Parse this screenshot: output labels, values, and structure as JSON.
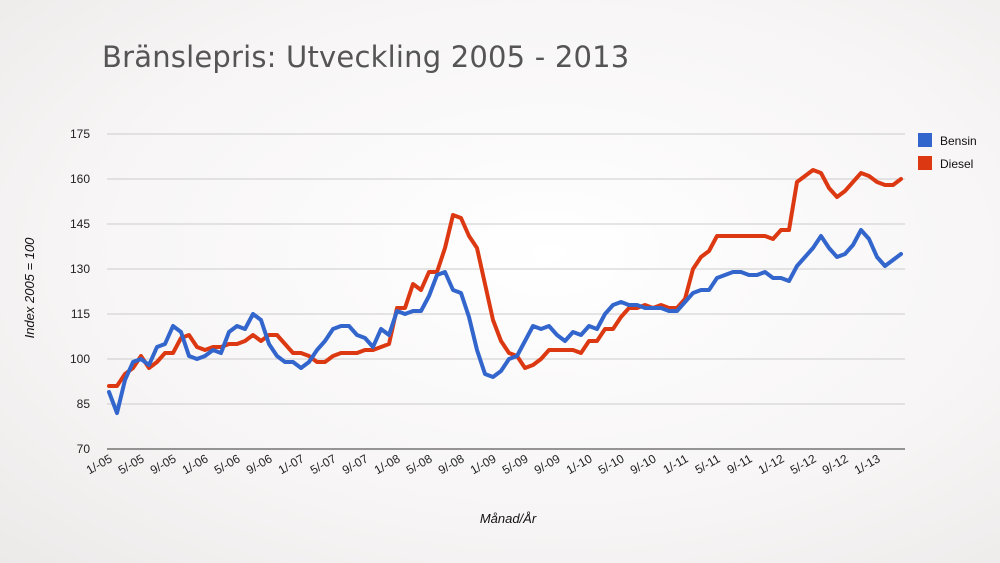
{
  "chart_data": {
    "type": "line",
    "title": "Bränslepris: Utveckling 2005 - 2013",
    "xlabel": "Månad/År",
    "ylabel": "Index 2005 = 100",
    "ylim": [
      70,
      175
    ],
    "yticks": [
      70,
      85,
      100,
      115,
      130,
      145,
      160,
      175
    ],
    "xticks": [
      {
        "label": "1/-05",
        "index": 0
      },
      {
        "label": "5/-05",
        "index": 4
      },
      {
        "label": "9/-05",
        "index": 8
      },
      {
        "label": "1/-06",
        "index": 12
      },
      {
        "label": "5/-06",
        "index": 16
      },
      {
        "label": "9/-06",
        "index": 20
      },
      {
        "label": "1/-07",
        "index": 24
      },
      {
        "label": "5/-07",
        "index": 28
      },
      {
        "label": "9/-07",
        "index": 32
      },
      {
        "label": "1/-08",
        "index": 36
      },
      {
        "label": "5/-08",
        "index": 40
      },
      {
        "label": "9/-08",
        "index": 44
      },
      {
        "label": "1/-09",
        "index": 48
      },
      {
        "label": "5/-09",
        "index": 52
      },
      {
        "label": "9/-09",
        "index": 56
      },
      {
        "label": "1/-10",
        "index": 60
      },
      {
        "label": "5/-10",
        "index": 64
      },
      {
        "label": "9/-10",
        "index": 68
      },
      {
        "label": "1/-11",
        "index": 72
      },
      {
        "label": "5/-11",
        "index": 76
      },
      {
        "label": "9/-11",
        "index": 80
      },
      {
        "label": "1/-12",
        "index": 84
      },
      {
        "label": "5/-12",
        "index": 88
      },
      {
        "label": "9/-12",
        "index": 92
      },
      {
        "label": "1/-13",
        "index": 96
      }
    ],
    "grid": true,
    "legend_position": "right",
    "series": [
      {
        "name": "Bensin",
        "color": "#3366cc",
        "values": [
          89,
          82,
          93,
          99,
          100,
          98,
          104,
          105,
          111,
          109,
          101,
          100,
          101,
          103,
          102,
          109,
          111,
          110,
          115,
          113,
          105,
          101,
          99,
          99,
          97,
          99,
          103,
          106,
          110,
          111,
          111,
          108,
          107,
          104,
          110,
          108,
          116,
          115,
          116,
          116,
          121,
          128,
          129,
          123,
          122,
          114,
          103,
          95,
          94,
          96,
          100,
          101,
          106,
          111,
          110,
          111,
          108,
          106,
          109,
          108,
          111,
          110,
          115,
          118,
          119,
          118,
          118,
          117,
          117,
          117,
          116,
          116,
          119,
          122,
          123,
          123,
          127,
          128,
          129,
          129,
          128,
          128,
          129,
          127,
          127,
          126,
          131,
          134,
          137,
          141,
          137,
          134,
          135,
          138,
          143,
          140,
          134,
          131,
          133,
          135
        ],
        "tail_note": ""
      },
      {
        "name": "Diesel",
        "color": "#dc3912",
        "values": [
          91,
          91,
          95,
          97,
          101,
          97,
          99,
          102,
          102,
          107,
          108,
          104,
          103,
          104,
          104,
          105,
          105,
          106,
          108,
          106,
          108,
          108,
          105,
          102,
          102,
          101,
          99,
          99,
          101,
          102,
          102,
          102,
          103,
          103,
          104,
          105,
          117,
          117,
          125,
          123,
          129,
          129,
          137,
          148,
          147,
          141,
          137,
          125,
          113,
          106,
          102,
          101,
          97,
          98,
          100,
          103,
          103,
          103,
          103,
          102,
          106,
          106,
          110,
          110,
          114,
          117,
          117,
          118,
          117,
          118,
          117,
          117,
          120,
          130,
          134,
          136,
          141,
          141,
          141,
          141,
          141,
          141,
          141,
          140,
          143,
          143,
          159,
          161,
          163,
          162,
          157,
          154,
          156,
          159,
          162,
          161,
          159,
          158,
          158,
          160
        ]
      }
    ]
  }
}
